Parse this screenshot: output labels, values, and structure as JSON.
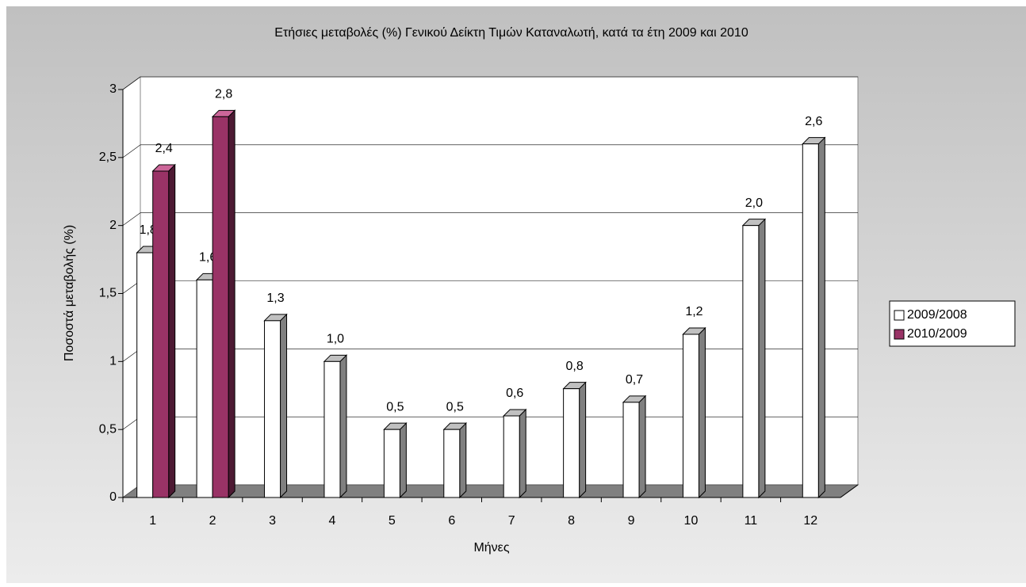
{
  "chart_data": {
    "type": "bar3d",
    "title": "Ετήσιες μεταβολές (%) Γενικού Δείκτη Τιμών Καταναλωτή, κατά τα έτη 2009 και 2010",
    "x_label": "Μήνες",
    "y_label": "Ποσοστά μεταβολής (%)",
    "categories": [
      "1",
      "2",
      "3",
      "4",
      "5",
      "6",
      "7",
      "8",
      "9",
      "10",
      "11",
      "12"
    ],
    "series": [
      {
        "name": "2009/2008",
        "color": "#ffffff",
        "values": [
          1.8,
          1.6,
          1.3,
          1.0,
          0.5,
          0.5,
          0.6,
          0.8,
          0.7,
          1.2,
          2.0,
          2.6
        ],
        "value_labels": [
          "1,8",
          "1,6",
          "1,3",
          "1,0",
          "0,5",
          "0,5",
          "0,6",
          "0,8",
          "0,7",
          "1,2",
          "2,0",
          "2,6"
        ]
      },
      {
        "name": "2010/2009",
        "color": "#993366",
        "values": [
          2.4,
          2.8,
          null,
          null,
          null,
          null,
          null,
          null,
          null,
          null,
          null,
          null
        ],
        "value_labels": [
          "2,4",
          "2,8",
          null,
          null,
          null,
          null,
          null,
          null,
          null,
          null,
          null,
          null
        ]
      }
    ],
    "ylim": [
      0,
      3
    ],
    "yticks": [
      0,
      {
        "value": 0.5,
        "label": "0,5"
      },
      1,
      {
        "value": 1.5,
        "label": "1,5"
      },
      2,
      {
        "value": 2.5,
        "label": "2,5"
      },
      3
    ],
    "grid": true,
    "legend": "right"
  }
}
